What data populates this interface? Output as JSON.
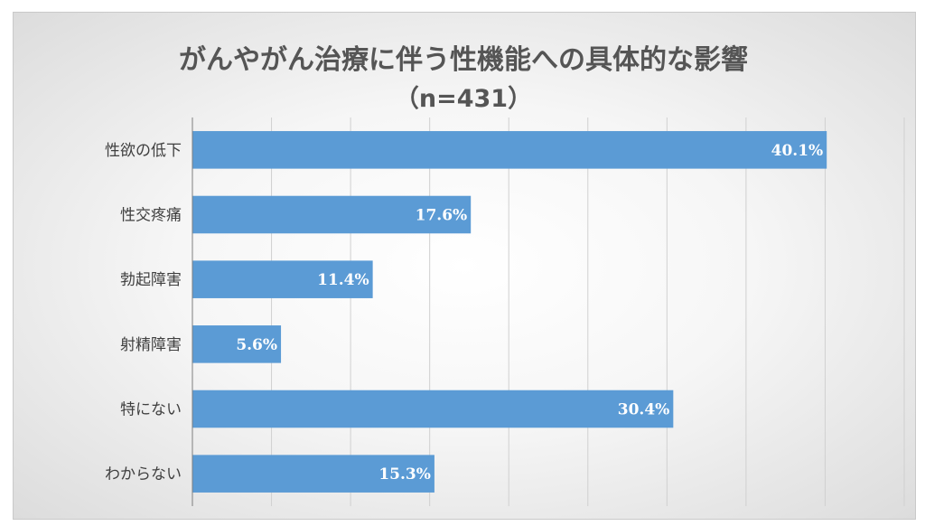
{
  "chart_data": {
    "type": "bar",
    "orientation": "horizontal",
    "title": "がんやがん治療に伴う性機能への具体的な影響",
    "subtitle": "（n=431）",
    "categories": [
      "性欲の低下",
      "性交疼痛",
      "勃起障害",
      "射精障害",
      "特にない",
      "わからない"
    ],
    "values": [
      40.1,
      17.6,
      11.4,
      5.6,
      30.4,
      15.3
    ],
    "value_labels": [
      "40.1%",
      "17.6%",
      "11.4%",
      "5.6%",
      "30.4%",
      "15.3%"
    ],
    "xlim": [
      0,
      45
    ],
    "x_gridline_step": 5,
    "grid": true,
    "legend": "none",
    "bar_color": "#5b9bd5",
    "value_label_position": "inside-end"
  }
}
